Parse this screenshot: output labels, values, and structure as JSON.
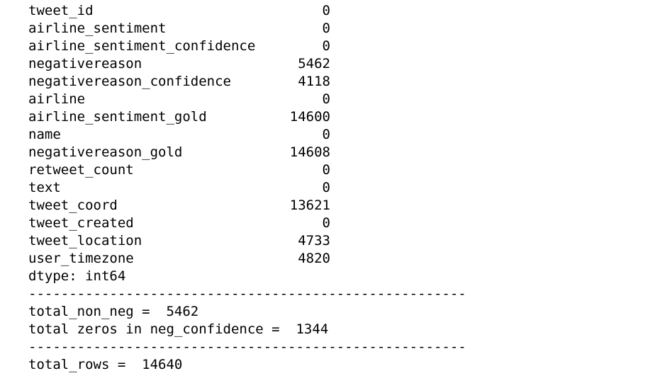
{
  "output": {
    "rows": [
      {
        "name": "tweet_id",
        "value": 0
      },
      {
        "name": "airline_sentiment",
        "value": 0
      },
      {
        "name": "airline_sentiment_confidence",
        "value": 0
      },
      {
        "name": "negativereason",
        "value": 5462
      },
      {
        "name": "negativereason_confidence",
        "value": 4118
      },
      {
        "name": "airline",
        "value": 0
      },
      {
        "name": "airline_sentiment_gold",
        "value": 14600
      },
      {
        "name": "name",
        "value": 0
      },
      {
        "name": "negativereason_gold",
        "value": 14608
      },
      {
        "name": "retweet_count",
        "value": 0
      },
      {
        "name": "text",
        "value": 0
      },
      {
        "name": "tweet_coord",
        "value": 13621
      },
      {
        "name": "tweet_created",
        "value": 0
      },
      {
        "name": "tweet_location",
        "value": 4733
      },
      {
        "name": "user_timezone",
        "value": 4820
      }
    ],
    "lines": [
      "dtype: int64",
      "------------------------------------------------------",
      "total_non_neg =  5462",
      "total zeros in neg_confidence =  1344",
      "------------------------------------------------------",
      "total_rows =  14640"
    ]
  }
}
